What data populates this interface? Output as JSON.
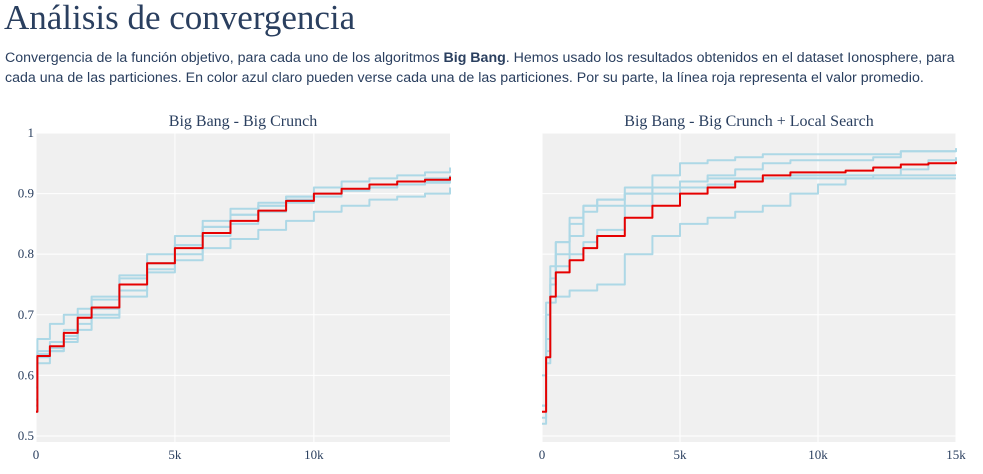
{
  "page": {
    "title": "Análisis de convergencia",
    "description_prefix": "Convergencia de la función objetivo, para cada uno de los algoritmos ",
    "description_bold": "Big Bang",
    "description_suffix": ". Hemos usado los resultados obtenidos en el dataset Ionosphere, para cada una de las particiones. En color azul claro pueden verse cada una de las particiones. Por su parte, la línea roja representa el valor promedio."
  },
  "colors": {
    "partition_line": "#add8e6",
    "mean_line": "#e60000",
    "plot_background": "#f0f0f0",
    "grid": "#ffffff",
    "text": "#2a3f5f"
  },
  "chart_data": [
    {
      "type": "line",
      "title": "Big Bang - Big Crunch",
      "xlabel": "",
      "ylabel": "",
      "xlim": [
        0,
        14900
      ],
      "ylim": [
        0.49,
        1.0
      ],
      "x_ticks": [
        0,
        5000,
        10000
      ],
      "x_tick_labels": [
        "0",
        "5k",
        "10k"
      ],
      "y_ticks": [
        0.5,
        0.6,
        0.7,
        0.8,
        0.9,
        1
      ],
      "y_tick_labels": [
        "0.5",
        "0.6",
        "0.7",
        "0.8",
        "0.9",
        "1"
      ],
      "grid": true,
      "series": [
        {
          "role": "partition",
          "x": [
            0,
            50,
            500,
            1000,
            1500,
            2000,
            3000,
            4000,
            5000,
            6000,
            7000,
            8000,
            9000,
            10000,
            11000,
            12000,
            13000,
            14000,
            14900
          ],
          "y": [
            0.54,
            0.64,
            0.655,
            0.675,
            0.7,
            0.725,
            0.765,
            0.8,
            0.83,
            0.855,
            0.875,
            0.885,
            0.895,
            0.9,
            0.905,
            0.91,
            0.915,
            0.918,
            0.92
          ]
        },
        {
          "role": "partition",
          "x": [
            0,
            50,
            500,
            1000,
            1500,
            2000,
            3000,
            4000,
            5000,
            6000,
            7000,
            8000,
            9000,
            10000,
            11000,
            12000,
            13000,
            14000,
            14900
          ],
          "y": [
            0.55,
            0.635,
            0.645,
            0.66,
            0.685,
            0.7,
            0.74,
            0.775,
            0.8,
            0.83,
            0.85,
            0.87,
            0.885,
            0.895,
            0.905,
            0.915,
            0.92,
            0.925,
            0.93
          ]
        },
        {
          "role": "partition",
          "x": [
            0,
            50,
            500,
            1000,
            1500,
            2000,
            3000,
            4000,
            5000,
            6000,
            7000,
            8000,
            9000,
            10000,
            11000,
            12000,
            13000,
            14000,
            14900
          ],
          "y": [
            0.58,
            0.66,
            0.685,
            0.7,
            0.71,
            0.73,
            0.76,
            0.785,
            0.815,
            0.845,
            0.865,
            0.88,
            0.895,
            0.91,
            0.92,
            0.925,
            0.93,
            0.935,
            0.943
          ]
        },
        {
          "role": "partition",
          "x": [
            0,
            50,
            500,
            1000,
            1500,
            2000,
            3000,
            4000,
            5000,
            6000,
            7000,
            8000,
            9000,
            10000,
            11000,
            12000,
            13000,
            14000,
            14900
          ],
          "y": [
            0.56,
            0.62,
            0.64,
            0.655,
            0.675,
            0.695,
            0.73,
            0.77,
            0.79,
            0.81,
            0.825,
            0.84,
            0.855,
            0.87,
            0.88,
            0.89,
            0.895,
            0.9,
            0.91
          ]
        },
        {
          "role": "partition",
          "x": [
            0,
            50,
            500,
            1000,
            1500,
            2000,
            3000,
            4000,
            5000,
            6000,
            7000,
            8000,
            9000,
            10000,
            11000,
            12000,
            13000,
            14000,
            14900
          ],
          "y": [
            0.54,
            0.63,
            0.64,
            0.665,
            0.695,
            0.71,
            0.75,
            0.785,
            0.815,
            0.845,
            0.865,
            0.88,
            0.89,
            0.9,
            0.905,
            0.91,
            0.915,
            0.92,
            0.925
          ]
        },
        {
          "role": "mean",
          "x": [
            0,
            50,
            500,
            1000,
            1500,
            2000,
            3000,
            4000,
            5000,
            6000,
            7000,
            8000,
            9000,
            10000,
            11000,
            12000,
            13000,
            14000,
            14900
          ],
          "y": [
            0.54,
            0.632,
            0.648,
            0.67,
            0.695,
            0.712,
            0.75,
            0.785,
            0.81,
            0.835,
            0.855,
            0.872,
            0.888,
            0.9,
            0.908,
            0.915,
            0.92,
            0.923,
            0.928
          ]
        }
      ]
    },
    {
      "type": "line",
      "title": "Big Bang - Big Crunch + Local Search",
      "xlabel": "",
      "ylabel": "",
      "xlim": [
        0,
        15000
      ],
      "ylim": [
        0.49,
        1.0
      ],
      "x_ticks": [
        0,
        5000,
        10000,
        15000
      ],
      "x_tick_labels": [
        "0",
        "5k",
        "10k",
        "15k"
      ],
      "y_ticks": [
        0.5,
        0.6,
        0.7,
        0.8,
        0.9,
        1
      ],
      "y_tick_labels": [
        "0.5",
        "0.6",
        "0.7",
        "0.8",
        "0.9",
        "1"
      ],
      "grid": true,
      "series": [
        {
          "role": "partition",
          "x": [
            0,
            150,
            300,
            500,
            1000,
            1500,
            2000,
            3000,
            4000,
            5000,
            6000,
            7000,
            8000,
            9000,
            10000,
            11000,
            12000,
            13000,
            14000,
            15000
          ],
          "y": [
            0.52,
            0.64,
            0.76,
            0.82,
            0.85,
            0.88,
            0.89,
            0.9,
            0.91,
            0.91,
            0.915,
            0.92,
            0.925,
            0.93,
            0.93,
            0.93,
            0.93,
            0.93,
            0.93,
            0.93
          ]
        },
        {
          "role": "partition",
          "x": [
            0,
            150,
            300,
            500,
            1000,
            1500,
            2000,
            3000,
            4000,
            5000,
            6000,
            7000,
            8000,
            9000,
            10000,
            11000,
            12000,
            13000,
            14000,
            15000
          ],
          "y": [
            0.55,
            0.7,
            0.75,
            0.78,
            0.8,
            0.82,
            0.84,
            0.88,
            0.9,
            0.92,
            0.93,
            0.94,
            0.95,
            0.955,
            0.955,
            0.955,
            0.96,
            0.97,
            0.97,
            0.975
          ]
        },
        {
          "role": "partition",
          "x": [
            0,
            150,
            300,
            500,
            1000,
            1500,
            2000,
            3000,
            4000,
            5000,
            6000,
            7000,
            8000,
            9000,
            10000,
            11000,
            12000,
            13000,
            14000,
            15000
          ],
          "y": [
            0.6,
            0.72,
            0.78,
            0.82,
            0.86,
            0.88,
            0.89,
            0.9,
            0.91,
            0.92,
            0.925,
            0.925,
            0.925,
            0.925,
            0.925,
            0.925,
            0.925,
            0.925,
            0.925,
            0.925
          ]
        },
        {
          "role": "partition",
          "x": [
            0,
            150,
            300,
            500,
            1000,
            1500,
            2000,
            3000,
            4000,
            5000,
            6000,
            7000,
            8000,
            9000,
            10000,
            11000,
            12000,
            13000,
            14000,
            15000
          ],
          "y": [
            0.55,
            0.66,
            0.72,
            0.73,
            0.74,
            0.74,
            0.75,
            0.8,
            0.83,
            0.85,
            0.86,
            0.87,
            0.88,
            0.9,
            0.915,
            0.925,
            0.93,
            0.94,
            0.955,
            0.96
          ]
        },
        {
          "role": "partition",
          "x": [
            0,
            150,
            300,
            500,
            1000,
            1500,
            2000,
            3000,
            4000,
            5000,
            6000,
            7000,
            8000,
            9000,
            10000,
            11000,
            12000,
            13000,
            14000,
            15000
          ],
          "y": [
            0.53,
            0.62,
            0.75,
            0.8,
            0.83,
            0.87,
            0.88,
            0.91,
            0.93,
            0.95,
            0.955,
            0.96,
            0.965,
            0.965,
            0.965,
            0.965,
            0.965,
            0.97,
            0.97,
            0.97
          ]
        },
        {
          "role": "mean",
          "x": [
            0,
            150,
            300,
            500,
            1000,
            1500,
            2000,
            3000,
            4000,
            5000,
            6000,
            7000,
            8000,
            9000,
            10000,
            11000,
            12000,
            13000,
            14000,
            15000
          ],
          "y": [
            0.54,
            0.63,
            0.73,
            0.77,
            0.79,
            0.81,
            0.83,
            0.86,
            0.88,
            0.9,
            0.91,
            0.92,
            0.93,
            0.935,
            0.935,
            0.938,
            0.943,
            0.948,
            0.95,
            0.953
          ]
        }
      ]
    }
  ]
}
